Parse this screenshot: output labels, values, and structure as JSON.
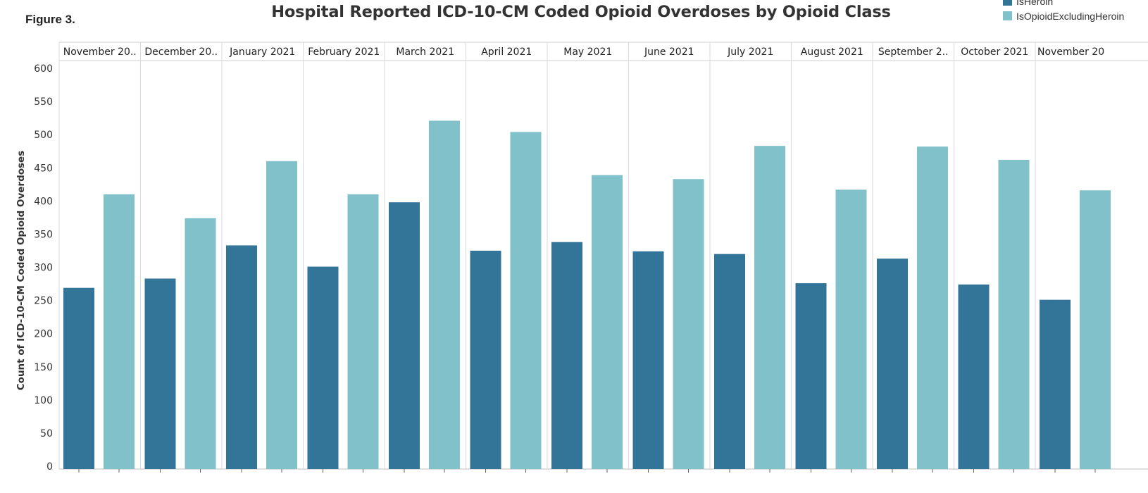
{
  "figure_label": "Figure 3.",
  "chart_data": {
    "type": "bar",
    "title": "Hospital Reported ICD-10-CM Coded Opioid Overdoses by Opioid Class",
    "xlabel": "",
    "ylabel": "Count of ICD-10-CM Coded Opioid Overdoses",
    "ylim": [
      0,
      600
    ],
    "yticks": [
      0,
      50,
      100,
      150,
      200,
      250,
      300,
      350,
      400,
      450,
      500,
      550,
      600
    ],
    "grid": false,
    "legend_placement": "top-right",
    "categories": [
      "November 20..",
      "December 20..",
      "January 2021",
      "February 2021",
      "March 2021",
      "April 2021",
      "May 2021",
      "June 2021",
      "July 2021",
      "August 2021",
      "September 2..",
      "October 2021",
      "November 20"
    ],
    "series": [
      {
        "name": "IsHeroin",
        "color": "#337599",
        "values": [
          269,
          283,
          333,
          301,
          398,
          325,
          338,
          324,
          320,
          276,
          313,
          274,
          251
        ]
      },
      {
        "name": "IsOpioidExcludingHeroin",
        "color": "#80c1ca",
        "values": [
          410,
          374,
          460,
          410,
          521,
          504,
          439,
          433,
          483,
          417,
          482,
          462,
          416
        ]
      }
    ]
  }
}
